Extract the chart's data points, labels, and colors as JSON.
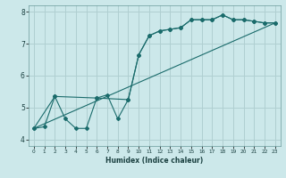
{
  "xlabel": "Humidex (Indice chaleur)",
  "xlim": [
    -0.5,
    23.5
  ],
  "ylim": [
    3.8,
    8.2
  ],
  "xticks": [
    0,
    1,
    2,
    3,
    4,
    5,
    6,
    7,
    8,
    9,
    10,
    11,
    12,
    13,
    14,
    15,
    16,
    17,
    18,
    19,
    20,
    21,
    22,
    23
  ],
  "yticks": [
    4,
    5,
    6,
    7,
    8
  ],
  "bg_color": "#cce8ea",
  "grid_color": "#b0cfd1",
  "line_color": "#1a6b6b",
  "line1_x": [
    0,
    1,
    2,
    3,
    4,
    5,
    6,
    7,
    8,
    9,
    10,
    11,
    12,
    13,
    14,
    15,
    16,
    17,
    18,
    19,
    20,
    21,
    22,
    23
  ],
  "line1_y": [
    4.35,
    4.4,
    5.35,
    4.65,
    4.35,
    4.35,
    5.3,
    5.4,
    4.65,
    5.25,
    6.65,
    7.25,
    7.4,
    7.45,
    7.5,
    7.75,
    7.75,
    7.75,
    7.9,
    7.75,
    7.75,
    7.7,
    7.65,
    7.65
  ],
  "line2_x": [
    0,
    2,
    6,
    9,
    10,
    11,
    12,
    13,
    14,
    15,
    16,
    17,
    18,
    19,
    20,
    21,
    22,
    23
  ],
  "line2_y": [
    4.35,
    5.35,
    5.3,
    5.25,
    6.65,
    7.25,
    7.4,
    7.45,
    7.5,
    7.75,
    7.75,
    7.75,
    7.9,
    7.75,
    7.75,
    7.7,
    7.65,
    7.65
  ],
  "line3_x": [
    0,
    23
  ],
  "line3_y": [
    4.35,
    7.65
  ]
}
